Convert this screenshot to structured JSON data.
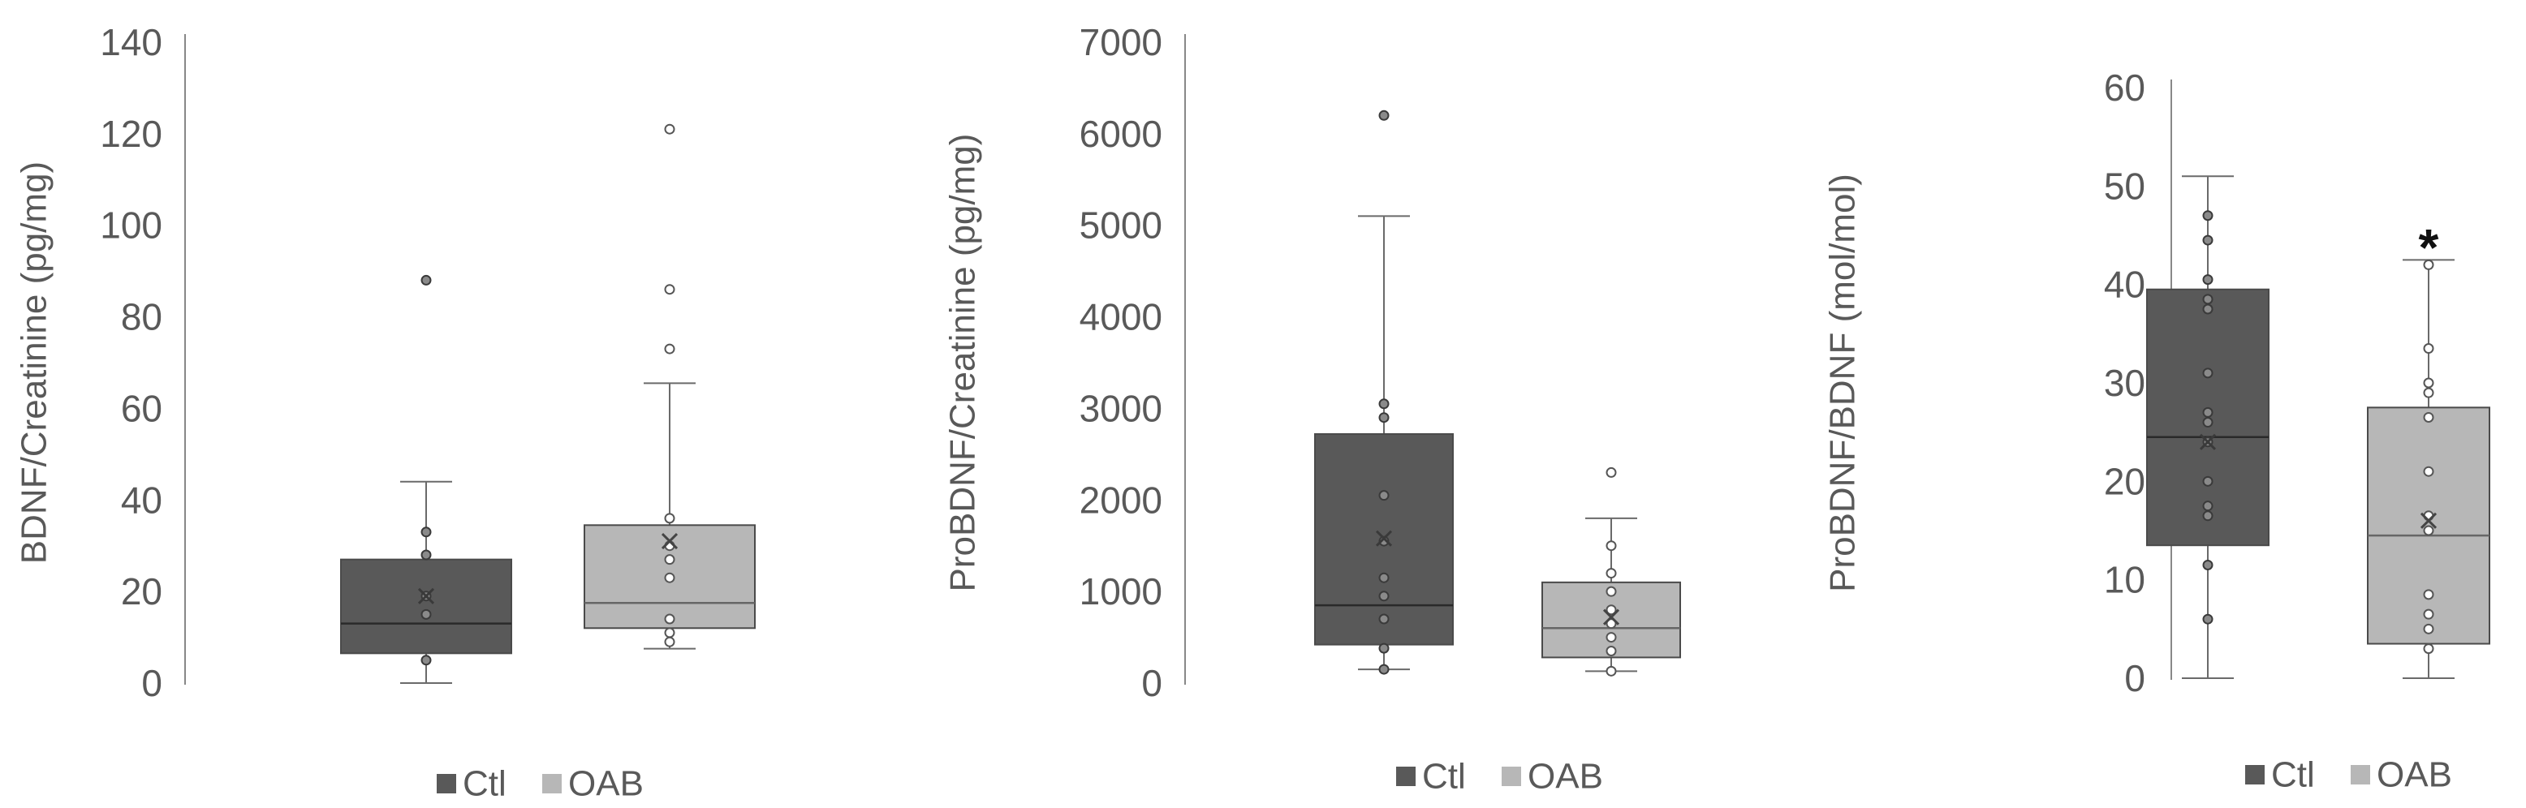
{
  "legend": {
    "ctl_label": "Ctl",
    "oab_label": "OAB"
  },
  "colors": {
    "ctl": "#595959",
    "oab": "#b7b7b7",
    "axis": "#888888",
    "text": "#595959"
  },
  "chart_data": [
    {
      "type": "box",
      "ylabel": "BDNF/Creatinine (pg/mg)",
      "ylim": [
        0,
        140
      ],
      "yticks": [
        0,
        20,
        40,
        60,
        80,
        100,
        120,
        140
      ],
      "legend_position": "bottom",
      "significance": "",
      "series": [
        {
          "name": "Ctl",
          "min": 0,
          "q1": 6.5,
          "median": 13,
          "q3": 27,
          "max": 44,
          "mean": 19,
          "points": [
            5,
            15,
            19,
            28,
            33,
            88
          ]
        },
        {
          "name": "OAB",
          "min": 7.5,
          "q1": 12,
          "median": 17.5,
          "q3": 34.5,
          "max": 65.5,
          "mean": 31,
          "points": [
            9,
            11,
            14,
            23,
            27,
            30,
            36,
            73,
            86,
            121
          ]
        }
      ]
    },
    {
      "type": "box",
      "ylabel": "ProBDNF/Creatinine (pg/mg)",
      "ylim": [
        0,
        7000
      ],
      "yticks": [
        0,
        1000,
        2000,
        3000,
        4000,
        5000,
        6000,
        7000
      ],
      "legend_position": "bottom",
      "significance": "",
      "series": [
        {
          "name": "Ctl",
          "min": 150,
          "q1": 420,
          "median": 850,
          "q3": 2720,
          "max": 5100,
          "mean": 1580,
          "points": [
            150,
            380,
            700,
            950,
            1150,
            1550,
            2050,
            2900,
            3050,
            6200
          ]
        },
        {
          "name": "OAB",
          "min": 130,
          "q1": 280,
          "median": 600,
          "q3": 1100,
          "max": 1800,
          "mean": 720,
          "points": [
            130,
            350,
            500,
            650,
            800,
            1000,
            1200,
            1500,
            2300
          ]
        }
      ]
    },
    {
      "type": "box",
      "ylabel": "ProBDNF/BDNF (mol/mol)",
      "ylim": [
        0,
        60
      ],
      "yticks": [
        0,
        10,
        20,
        30,
        40,
        50,
        60
      ],
      "legend_position": "bottom",
      "significance": "*",
      "series": [
        {
          "name": "Ctl",
          "min": 0,
          "q1": 13.5,
          "median": 24.5,
          "q3": 39.5,
          "max": 51,
          "mean": 24,
          "points": [
            6,
            11.5,
            16.5,
            17.5,
            20,
            24,
            26,
            27,
            31,
            37.5,
            38.5,
            40.5,
            44.5,
            47
          ]
        },
        {
          "name": "OAB",
          "min": 0,
          "q1": 3.5,
          "median": 14.5,
          "q3": 27.5,
          "max": 42.5,
          "mean": 16,
          "points": [
            3,
            5,
            6.5,
            8.5,
            15,
            16.5,
            21,
            26.5,
            29,
            30,
            33.5,
            42
          ]
        }
      ]
    }
  ]
}
